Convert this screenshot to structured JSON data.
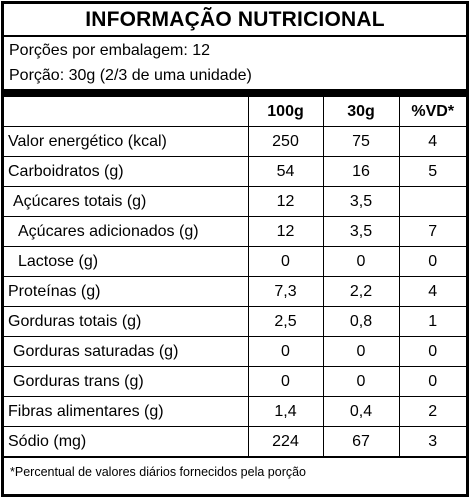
{
  "title": "INFORMAÇÃO NUTRICIONAL",
  "serving": {
    "per_package": "Porções por embalagem: 12",
    "portion": "Porção: 30g (2/3 de uma unidade)"
  },
  "table": {
    "headers": [
      "",
      "100g",
      "30g",
      "%VD*"
    ],
    "rows": [
      {
        "name": "Valor energético (kcal)",
        "v100": "250",
        "v30": "75",
        "vd": "4"
      },
      {
        "name": "Carboidratos (g)",
        "v100": "54",
        "v30": "16",
        "vd": "5"
      },
      {
        "name": "Açúcares totais (g)",
        "v100": "12",
        "v30": "3,5",
        "vd": ""
      },
      {
        "name": "Açúcares adicionados (g)",
        "v100": "12",
        "v30": "3,5",
        "vd": "7"
      },
      {
        "name": "Lactose (g)",
        "v100": "0",
        "v30": "0",
        "vd": "0"
      },
      {
        "name": "Proteínas (g)",
        "v100": "7,3",
        "v30": "2,2",
        "vd": "4"
      },
      {
        "name": "Gorduras totais (g)",
        "v100": "2,5",
        "v30": "0,8",
        "vd": "1"
      },
      {
        "name": "Gorduras saturadas (g)",
        "v100": "0",
        "v30": "0",
        "vd": "0"
      },
      {
        "name": "Gorduras trans (g)",
        "v100": "0",
        "v30": "0",
        "vd": "0"
      },
      {
        "name": "Fibras alimentares (g)",
        "v100": "1,4",
        "v30": "0,4",
        "vd": "2"
      },
      {
        "name": "Sódio (mg)",
        "v100": "224",
        "v30": "67",
        "vd": "3"
      }
    ]
  },
  "footnote": "*Percentual de valores diários fornecidos pela porção"
}
